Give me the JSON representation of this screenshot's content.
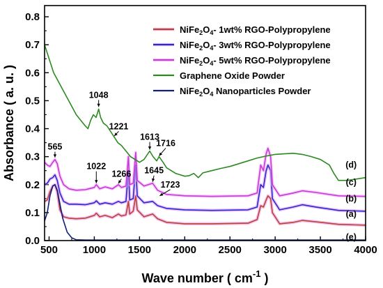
{
  "chart_data": {
    "type": "line",
    "xlabel": "Wave number ( cm",
    "xlabel_sup": "-1",
    "xlabel_tail": " )",
    "ylabel": "Absorbance ( a. u. )",
    "xlim": [
      450,
      4000
    ],
    "ylim": [
      0.0,
      0.84
    ],
    "xticks": [
      500,
      1000,
      1500,
      2000,
      2500,
      3000,
      3500,
      4000
    ],
    "xtick_labels": [
      "500",
      "1000",
      "1500",
      "2000",
      "2500",
      "3000",
      "3500",
      "4000"
    ],
    "yticks": [
      0.0,
      0.1,
      0.2,
      0.3,
      0.4,
      0.5,
      0.6,
      0.7,
      0.8
    ],
    "ytick_labels": [
      "0.0",
      "0.1",
      "0.2",
      "0.3",
      "0.4",
      "0.5",
      "0.6",
      "0.7",
      "0.8"
    ],
    "legend_position": "top-right",
    "series": [
      {
        "name": "NiFe2O4- 1wt% RGO-Polypropylene",
        "name_parts": [
          "NiFe",
          "2",
          "O",
          "4",
          "- 1wt% RGO-Polypropylene"
        ],
        "color": "#b5472f",
        "glow": "#e98be9",
        "curve_label": "(a)",
        "points": [
          [
            450,
            0.14
          ],
          [
            480,
            0.145
          ],
          [
            510,
            0.175
          ],
          [
            540,
            0.195
          ],
          [
            565,
            0.2
          ],
          [
            590,
            0.175
          ],
          [
            620,
            0.11
          ],
          [
            660,
            0.085
          ],
          [
            720,
            0.08
          ],
          [
            800,
            0.078
          ],
          [
            900,
            0.08
          ],
          [
            1000,
            0.09
          ],
          [
            1022,
            0.098
          ],
          [
            1060,
            0.085
          ],
          [
            1120,
            0.09
          ],
          [
            1200,
            0.082
          ],
          [
            1266,
            0.095
          ],
          [
            1300,
            0.088
          ],
          [
            1350,
            0.092
          ],
          [
            1377,
            0.14
          ],
          [
            1392,
            0.095
          ],
          [
            1430,
            0.105
          ],
          [
            1458,
            0.16
          ],
          [
            1475,
            0.11
          ],
          [
            1550,
            0.085
          ],
          [
            1645,
            0.095
          ],
          [
            1700,
            0.078
          ],
          [
            1800,
            0.065
          ],
          [
            2000,
            0.06
          ],
          [
            2300,
            0.06
          ],
          [
            2700,
            0.062
          ],
          [
            2800,
            0.075
          ],
          [
            2840,
            0.125
          ],
          [
            2870,
            0.12
          ],
          [
            2900,
            0.145
          ],
          [
            2920,
            0.16
          ],
          [
            2950,
            0.15
          ],
          [
            2970,
            0.1
          ],
          [
            3050,
            0.06
          ],
          [
            3200,
            0.065
          ],
          [
            3300,
            0.072
          ],
          [
            3450,
            0.067
          ],
          [
            3700,
            0.058
          ],
          [
            4000,
            0.055
          ]
        ]
      },
      {
        "name": "NiFe2O4- 3wt% RGO-Polypropylene",
        "name_parts": [
          "NiFe",
          "2",
          "O",
          "4",
          "- 3wt% RGO-Polypropylene"
        ],
        "color": "#1f2fcf",
        "glow": "#e98be9",
        "curve_label": "(b)",
        "points": [
          [
            450,
            0.2
          ],
          [
            480,
            0.205
          ],
          [
            510,
            0.22
          ],
          [
            540,
            0.225
          ],
          [
            565,
            0.235
          ],
          [
            590,
            0.215
          ],
          [
            620,
            0.17
          ],
          [
            660,
            0.14
          ],
          [
            720,
            0.13
          ],
          [
            800,
            0.13
          ],
          [
            900,
            0.128
          ],
          [
            1000,
            0.135
          ],
          [
            1022,
            0.142
          ],
          [
            1060,
            0.13
          ],
          [
            1120,
            0.135
          ],
          [
            1200,
            0.13
          ],
          [
            1266,
            0.14
          ],
          [
            1300,
            0.135
          ],
          [
            1350,
            0.14
          ],
          [
            1377,
            0.25
          ],
          [
            1392,
            0.145
          ],
          [
            1430,
            0.15
          ],
          [
            1458,
            0.27
          ],
          [
            1475,
            0.16
          ],
          [
            1550,
            0.135
          ],
          [
            1645,
            0.14
          ],
          [
            1700,
            0.125
          ],
          [
            1800,
            0.115
          ],
          [
            2000,
            0.11
          ],
          [
            2300,
            0.108
          ],
          [
            2700,
            0.11
          ],
          [
            2800,
            0.12
          ],
          [
            2840,
            0.2
          ],
          [
            2870,
            0.19
          ],
          [
            2900,
            0.25
          ],
          [
            2920,
            0.27
          ],
          [
            2950,
            0.25
          ],
          [
            2970,
            0.15
          ],
          [
            3050,
            0.11
          ],
          [
            3200,
            0.12
          ],
          [
            3300,
            0.128
          ],
          [
            3450,
            0.12
          ],
          [
            3700,
            0.108
          ],
          [
            4000,
            0.105
          ]
        ]
      },
      {
        "name": "NiFe2O4- 5wt% RGO-Polypropylene",
        "name_parts": [
          "NiFe",
          "2",
          "O",
          "4",
          "- 5wt% RGO-Polypropylene"
        ],
        "color": "#c23bd8",
        "glow": "#f0a8f0",
        "curve_label": "(c)",
        "points": [
          [
            450,
            0.28
          ],
          [
            480,
            0.27
          ],
          [
            510,
            0.265
          ],
          [
            540,
            0.28
          ],
          [
            565,
            0.29
          ],
          [
            590,
            0.275
          ],
          [
            620,
            0.23
          ],
          [
            660,
            0.2
          ],
          [
            720,
            0.185
          ],
          [
            800,
            0.18
          ],
          [
            900,
            0.182
          ],
          [
            1000,
            0.19
          ],
          [
            1022,
            0.2
          ],
          [
            1060,
            0.185
          ],
          [
            1120,
            0.192
          ],
          [
            1200,
            0.185
          ],
          [
            1266,
            0.2
          ],
          [
            1300,
            0.19
          ],
          [
            1350,
            0.195
          ],
          [
            1377,
            0.3
          ],
          [
            1392,
            0.2
          ],
          [
            1430,
            0.205
          ],
          [
            1458,
            0.315
          ],
          [
            1475,
            0.215
          ],
          [
            1550,
            0.195
          ],
          [
            1645,
            0.205
          ],
          [
            1700,
            0.18
          ],
          [
            1800,
            0.165
          ],
          [
            2000,
            0.16
          ],
          [
            2300,
            0.158
          ],
          [
            2700,
            0.16
          ],
          [
            2800,
            0.17
          ],
          [
            2840,
            0.27
          ],
          [
            2870,
            0.25
          ],
          [
            2900,
            0.31
          ],
          [
            2920,
            0.33
          ],
          [
            2950,
            0.3
          ],
          [
            2970,
            0.2
          ],
          [
            3050,
            0.16
          ],
          [
            3200,
            0.17
          ],
          [
            3300,
            0.178
          ],
          [
            3450,
            0.172
          ],
          [
            3700,
            0.16
          ],
          [
            4000,
            0.158
          ]
        ]
      },
      {
        "name": "Graphene Oxide Powder",
        "color": "#2b8a1f",
        "glow": "",
        "curve_label": "(d)",
        "points": [
          [
            450,
            0.7
          ],
          [
            500,
            0.65
          ],
          [
            550,
            0.6
          ],
          [
            600,
            0.57
          ],
          [
            650,
            0.54
          ],
          [
            700,
            0.51
          ],
          [
            750,
            0.48
          ],
          [
            800,
            0.45
          ],
          [
            850,
            0.43
          ],
          [
            900,
            0.41
          ],
          [
            930,
            0.4
          ],
          [
            960,
            0.43
          ],
          [
            990,
            0.45
          ],
          [
            1020,
            0.44
          ],
          [
            1048,
            0.47
          ],
          [
            1070,
            0.44
          ],
          [
            1100,
            0.42
          ],
          [
            1140,
            0.41
          ],
          [
            1180,
            0.39
          ],
          [
            1221,
            0.37
          ],
          [
            1260,
            0.35
          ],
          [
            1300,
            0.34
          ],
          [
            1350,
            0.32
          ],
          [
            1400,
            0.3
          ],
          [
            1450,
            0.29
          ],
          [
            1500,
            0.28
          ],
          [
            1550,
            0.29
          ],
          [
            1613,
            0.32
          ],
          [
            1650,
            0.3
          ],
          [
            1690,
            0.285
          ],
          [
            1716,
            0.3
          ],
          [
            1760,
            0.28
          ],
          [
            1800,
            0.26
          ],
          [
            1900,
            0.24
          ],
          [
            2000,
            0.23
          ],
          [
            2050,
            0.232
          ],
          [
            2100,
            0.24
          ],
          [
            2150,
            0.225
          ],
          [
            2200,
            0.242
          ],
          [
            2300,
            0.25
          ],
          [
            2400,
            0.258
          ],
          [
            2500,
            0.265
          ],
          [
            2600,
            0.275
          ],
          [
            2700,
            0.285
          ],
          [
            2800,
            0.295
          ],
          [
            2900,
            0.302
          ],
          [
            3000,
            0.308
          ],
          [
            3100,
            0.31
          ],
          [
            3200,
            0.312
          ],
          [
            3300,
            0.308
          ],
          [
            3400,
            0.3
          ],
          [
            3500,
            0.29
          ],
          [
            3600,
            0.27
          ],
          [
            3650,
            0.24
          ],
          [
            3700,
            0.215
          ],
          [
            3800,
            0.215
          ],
          [
            3900,
            0.22
          ],
          [
            4000,
            0.225
          ]
        ]
      },
      {
        "name": "NiFe2O4 Nanoparticles Powder",
        "name_parts": [
          "NiFe",
          "2",
          "O",
          "4",
          " Nanoparticles Powder"
        ],
        "color": "#101e7a",
        "glow": "",
        "curve_label": "(e)",
        "points": [
          [
            450,
            0.07
          ],
          [
            480,
            0.1
          ],
          [
            510,
            0.16
          ],
          [
            540,
            0.195
          ],
          [
            565,
            0.2
          ],
          [
            590,
            0.18
          ],
          [
            620,
            0.13
          ],
          [
            650,
            0.08
          ],
          [
            700,
            0.03
          ],
          [
            750,
            0.01
          ],
          [
            800,
            0.003
          ],
          [
            900,
            0.002
          ],
          [
            1500,
            0.002
          ],
          [
            2500,
            0.002
          ],
          [
            4000,
            0.002
          ]
        ]
      }
    ],
    "annotations": [
      {
        "text": "565",
        "tx": 565,
        "ty": 0.325,
        "ax": 565,
        "ay": 0.297
      },
      {
        "text": "1048",
        "tx": 1048,
        "ty": 0.51,
        "ax": 1048,
        "ay": 0.478
      },
      {
        "text": "1221",
        "tx": 1270,
        "ty": 0.398,
        "ax": 1221,
        "ay": 0.374
      },
      {
        "text": "1613",
        "tx": 1613,
        "ty": 0.36,
        "ax": 1613,
        "ay": 0.325
      },
      {
        "text": "1716",
        "tx": 1790,
        "ty": 0.338,
        "ax": 1716,
        "ay": 0.303
      },
      {
        "text": "1022",
        "tx": 1022,
        "ty": 0.255,
        "ax": 1022,
        "ay": 0.205
      },
      {
        "text": "1266",
        "tx": 1300,
        "ty": 0.228,
        "ax": 1266,
        "ay": 0.204
      },
      {
        "text": "1645",
        "tx": 1660,
        "ty": 0.24,
        "ax": 1645,
        "ay": 0.21
      },
      {
        "text": "1723",
        "tx": 1840,
        "ty": 0.19,
        "ax": 1723,
        "ay": 0.16
      }
    ]
  }
}
